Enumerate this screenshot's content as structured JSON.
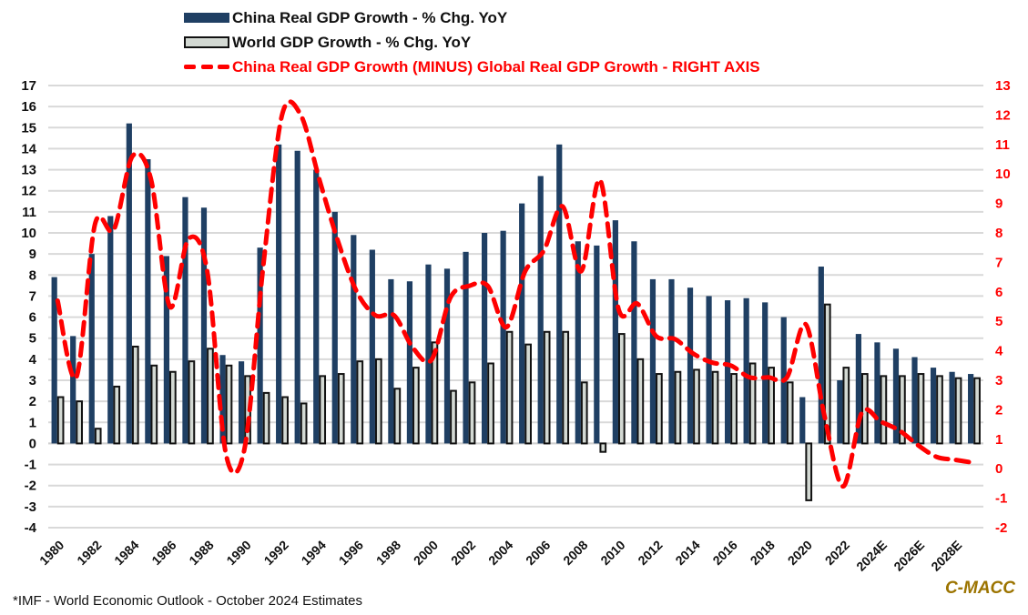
{
  "chart_data": {
    "type": "bar",
    "title": "",
    "xlabel": "",
    "ylabel": "",
    "ylim": [
      -4,
      17
    ],
    "y2lim": [
      -2,
      13
    ],
    "grid": true,
    "legend_position": "top",
    "categories": [
      "1980",
      "1981",
      "1982",
      "1983",
      "1984",
      "1985",
      "1986",
      "1987",
      "1988",
      "1989",
      "1990",
      "1991",
      "1992",
      "1993",
      "1994",
      "1995",
      "1996",
      "1997",
      "1998",
      "1999",
      "2000",
      "2001",
      "2002",
      "2003",
      "2004",
      "2005",
      "2006",
      "2007",
      "2008",
      "2009",
      "2010",
      "2011",
      "2012",
      "2013",
      "2014",
      "2015",
      "2016",
      "2017",
      "2018",
      "2019",
      "2020",
      "2021",
      "2022",
      "2023",
      "2024E",
      "2025E",
      "2026E",
      "2027E",
      "2028E",
      "2029E"
    ],
    "x_tick_labels": [
      "1980",
      "1982",
      "1984",
      "1986",
      "1988",
      "1990",
      "1992",
      "1994",
      "1996",
      "1998",
      "2000",
      "2002",
      "2004",
      "2006",
      "2008",
      "2010",
      "2012",
      "2014",
      "2016",
      "2018",
      "2020",
      "2022",
      "2024E",
      "2026E",
      "2028E"
    ],
    "y_ticks": [
      17,
      16,
      15,
      14,
      13,
      12,
      11,
      10,
      9,
      8,
      7,
      6,
      5,
      4,
      3,
      2,
      1,
      0,
      -1,
      -2,
      -3,
      -4
    ],
    "y2_ticks": [
      13,
      12,
      11,
      10,
      9,
      8,
      7,
      6,
      5,
      4,
      3,
      2,
      1,
      0,
      -1,
      -2
    ],
    "series": [
      {
        "name": "China Real GDP Growth - % Chg. YoY",
        "type": "bar",
        "axis": "left",
        "color": "#1f3f63",
        "values": [
          7.9,
          5.1,
          9.0,
          10.8,
          15.2,
          13.5,
          8.9,
          11.7,
          11.2,
          4.2,
          3.9,
          9.3,
          14.2,
          13.9,
          13.0,
          11.0,
          9.9,
          9.2,
          7.8,
          7.7,
          8.5,
          8.3,
          9.1,
          10.0,
          10.1,
          11.4,
          12.7,
          14.2,
          9.6,
          9.4,
          10.6,
          9.6,
          7.8,
          7.8,
          7.4,
          7.0,
          6.8,
          6.9,
          6.7,
          6.0,
          2.2,
          8.4,
          3.0,
          5.2,
          4.8,
          4.5,
          4.1,
          3.6,
          3.4,
          3.3
        ]
      },
      {
        "name": "World GDP Growth - % Chg. YoY",
        "type": "bar",
        "axis": "left",
        "color": "#d3d9d3",
        "values": [
          2.2,
          2.0,
          0.7,
          2.7,
          4.6,
          3.7,
          3.4,
          3.9,
          4.5,
          3.7,
          3.2,
          2.4,
          2.2,
          1.9,
          3.2,
          3.3,
          3.9,
          4.0,
          2.6,
          3.6,
          4.8,
          2.5,
          2.9,
          3.8,
          5.3,
          4.7,
          5.3,
          5.3,
          2.9,
          -0.4,
          5.2,
          4.0,
          3.3,
          3.4,
          3.5,
          3.4,
          3.3,
          3.8,
          3.6,
          2.9,
          -2.7,
          6.6,
          3.6,
          3.3,
          3.2,
          3.2,
          3.3,
          3.2,
          3.1,
          3.1
        ]
      },
      {
        "name": "China Real GDP Growth (MINUS) Global Real GDP Growth - RIGHT AXIS",
        "type": "line",
        "style": "dashed",
        "axis": "right",
        "color": "#ff0000",
        "values": [
          5.7,
          3.1,
          8.3,
          8.1,
          10.6,
          9.8,
          5.5,
          7.8,
          6.7,
          0.5,
          0.7,
          6.9,
          12.0,
          12.0,
          9.8,
          7.7,
          6.0,
          5.2,
          5.2,
          4.1,
          3.7,
          5.8,
          6.2,
          6.2,
          4.8,
          6.7,
          7.4,
          8.9,
          6.7,
          9.8,
          5.4,
          5.6,
          4.5,
          4.4,
          3.9,
          3.6,
          3.5,
          3.1,
          3.1,
          3.1,
          4.9,
          1.8,
          -0.6,
          1.9,
          1.6,
          1.3,
          0.8,
          0.4,
          0.3,
          0.2
        ]
      }
    ]
  },
  "legend": {
    "china": "China Real GDP Growth - % Chg. YoY",
    "world": "World GDP Growth - % Chg. YoY",
    "diff": "China Real GDP Growth (MINUS) Global Real GDP Growth - RIGHT AXIS"
  },
  "footnote": "*IMF - World Economic Outlook - October 2024 Estimates",
  "brand": "C-MACC"
}
